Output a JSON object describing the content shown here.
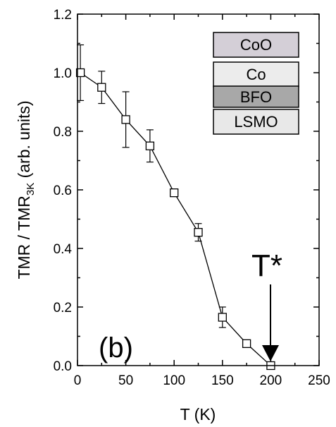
{
  "chart_data": {
    "type": "scatter",
    "xlabel": "T (K)",
    "ylabel": {
      "main": "TMR / TMR",
      "sub": "3K",
      "tail": " (arb. units)"
    },
    "xlim": [
      0,
      250
    ],
    "ylim": [
      0,
      1.2
    ],
    "xticks": [
      0,
      50,
      100,
      150,
      200,
      250
    ],
    "yticks": [
      0.0,
      0.2,
      0.4,
      0.6,
      0.8,
      1.0,
      1.2
    ],
    "ytick_labels": [
      "0.0",
      "0.2",
      "0.4",
      "0.6",
      "0.8",
      "1.0",
      "1.2"
    ],
    "grid": false,
    "series": [
      {
        "marker": "open-square",
        "line": true,
        "x": [
          3,
          25,
          50,
          75,
          100,
          125,
          150,
          175,
          200
        ],
        "y": [
          1.0,
          0.95,
          0.84,
          0.75,
          0.59,
          0.455,
          0.165,
          0.075,
          0.0
        ],
        "yerr": [
          0.095,
          0.055,
          0.095,
          0.055,
          0.0,
          0.03,
          0.035,
          0.012,
          0.0
        ]
      }
    ],
    "annotations": {
      "panel_label": "(b)",
      "arrow_label": "T*",
      "arrow_target": {
        "x": 200,
        "y": 0.0
      }
    },
    "layer_stack": [
      {
        "label": "CoO",
        "color": "#d4cfd7"
      },
      {
        "label": "Co",
        "color": "#ececec"
      },
      {
        "label": "BFO",
        "color": "#a8a8a8"
      },
      {
        "label": "LSMO",
        "color": "#e8e8e8"
      }
    ]
  }
}
